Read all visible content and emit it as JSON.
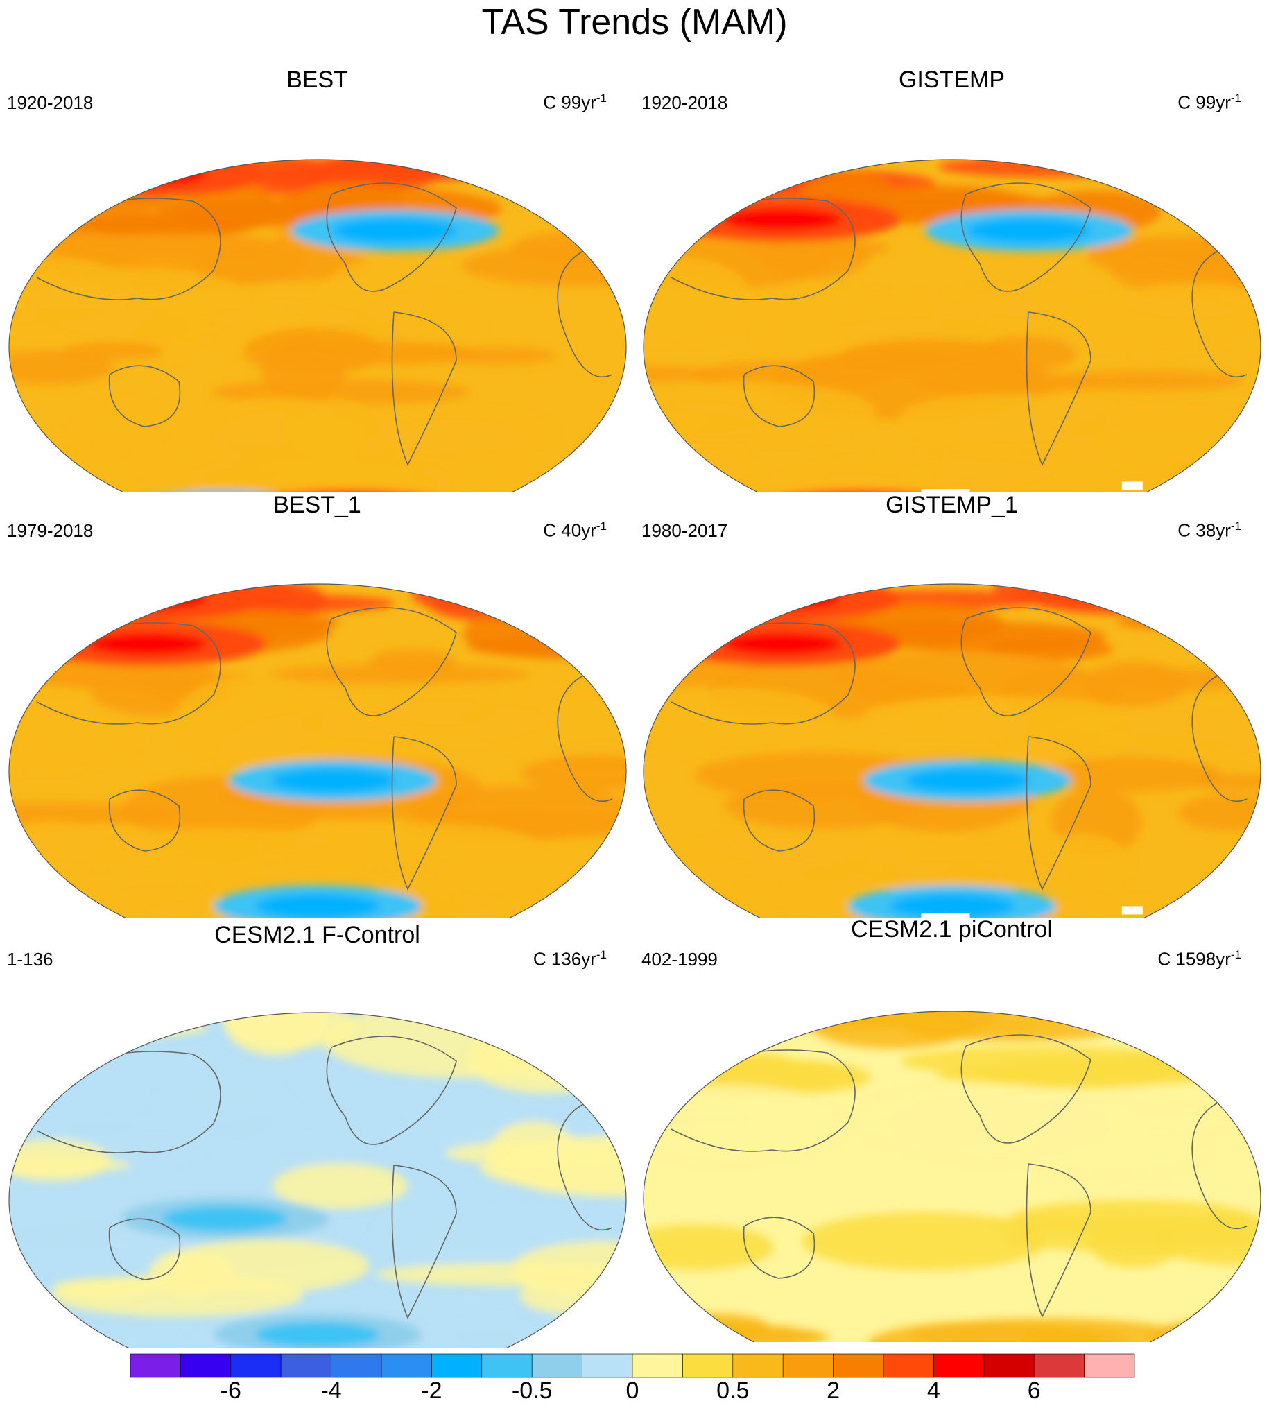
{
  "title": "TAS Trends (MAM)",
  "panels": [
    {
      "title": "BEST",
      "period": "1920-2018",
      "units": "C 99yr",
      "units_exp": "-1",
      "character": "warm-strong",
      "cold_regions": [
        "north-america-northeast",
        "antarctica-partial"
      ],
      "hot_regions": [
        "arctic",
        "antarctic-peninsula"
      ]
    },
    {
      "title": "GISTEMP",
      "period": "1920-2018",
      "units": "C 99yr",
      "units_exp": "-1",
      "character": "warm-strong",
      "cold_regions": [
        "north-america-northeast",
        "antarctica-partial"
      ],
      "hot_regions": [
        "siberia",
        "antarctica-partial"
      ],
      "missing_data": true
    },
    {
      "title": "BEST_1",
      "period": "1979-2018",
      "units": "C 40yr",
      "units_exp": "-1",
      "character": "warm-strong",
      "cold_regions": [
        "east-pacific",
        "southern-ocean"
      ],
      "hot_regions": [
        "arctic",
        "siberia"
      ]
    },
    {
      "title": "GISTEMP_1",
      "period": "1980-2017",
      "units": "C 38yr",
      "units_exp": "-1",
      "character": "warm-strong",
      "cold_regions": [
        "east-pacific",
        "southern-ocean"
      ],
      "hot_regions": [
        "arctic",
        "siberia"
      ],
      "missing_data": true
    },
    {
      "title": "CESM2.1 F-Control",
      "period": "1-136",
      "units": "C 136yr",
      "units_exp": "-1",
      "character": "weak-mixed",
      "cold_regions": [
        "tropics",
        "southern-ocean"
      ],
      "hot_regions": []
    },
    {
      "title": "CESM2.1 piControl",
      "period": "402-1999",
      "units": "C 1598yr",
      "units_exp": "-1",
      "character": "weak-warm",
      "cold_regions": [],
      "hot_regions": []
    }
  ],
  "colorbar": {
    "colors": [
      "#7b1fe8",
      "#3800f0",
      "#1a2ef5",
      "#3b5fe0",
      "#2f79ee",
      "#2a8ef2",
      "#00b1ff",
      "#3ec3f4",
      "#8fcfec",
      "#b8e0f6",
      "#fff59b",
      "#fcdd3f",
      "#f9b91a",
      "#f99d0c",
      "#f77e00",
      "#ff4a0a",
      "#ff0000",
      "#d40000",
      "#dc3a3a",
      "#ffb0b0"
    ],
    "tick_labels": [
      "-6",
      "-4",
      "-2",
      "-0.5",
      "0",
      "0.5",
      "2",
      "4",
      "6"
    ]
  },
  "colors": {
    "coast": "#666666",
    "background": "#ffffff"
  }
}
